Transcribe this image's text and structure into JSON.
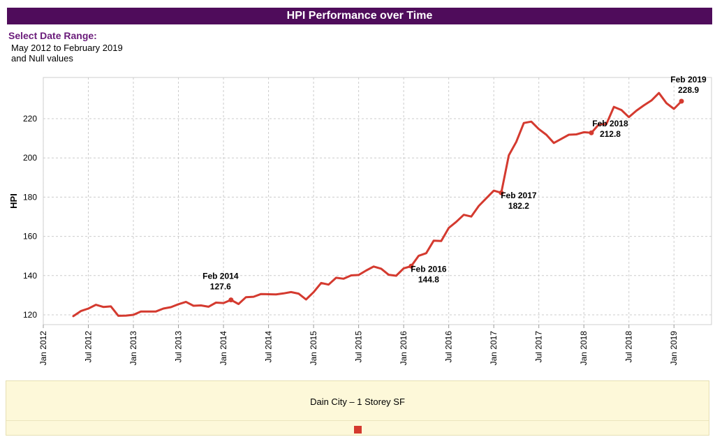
{
  "header": {
    "title": "HPI Performance over Time"
  },
  "filter": {
    "label": "Select Date Range:",
    "line1": "May 2012 to February 2019",
    "line2": "and Null values"
  },
  "colors": {
    "series": "#d43a2f",
    "title_bg": "#4f0c5b",
    "label": "#6a1b7a"
  },
  "legend": {
    "title": "Dain City – 1 Storey SF"
  },
  "chart_data": {
    "type": "line",
    "title": "HPI Performance over Time",
    "xlabel": "",
    "ylabel": "HPI",
    "xlim": [
      "2012-01",
      "2019-06"
    ],
    "ylim": [
      115,
      241
    ],
    "yticks": [
      120,
      140,
      160,
      180,
      200,
      220
    ],
    "xticks": [
      "Jan 2012",
      "Jul 2012",
      "Jan 2013",
      "Jul 2013",
      "Jan 2014",
      "Jul 2014",
      "Jan 2015",
      "Jul 2015",
      "Jan 2016",
      "Jul 2016",
      "Jan 2017",
      "Jul 2017",
      "Jan 2018",
      "Jul 2018",
      "Jan 2019"
    ],
    "grid": true,
    "legend_position": "bottom",
    "series": [
      {
        "name": "Dain City – 1 Storey SF",
        "x": [
          "2012-05",
          "2012-06",
          "2012-07",
          "2012-08",
          "2012-09",
          "2012-10",
          "2012-11",
          "2012-12",
          "2013-01",
          "2013-02",
          "2013-03",
          "2013-04",
          "2013-05",
          "2013-06",
          "2013-07",
          "2013-08",
          "2013-09",
          "2013-10",
          "2013-11",
          "2013-12",
          "2014-01",
          "2014-02",
          "2014-03",
          "2014-04",
          "2014-05",
          "2014-06",
          "2014-07",
          "2014-08",
          "2014-09",
          "2014-10",
          "2014-11",
          "2014-12",
          "2015-01",
          "2015-02",
          "2015-03",
          "2015-04",
          "2015-05",
          "2015-06",
          "2015-07",
          "2015-08",
          "2015-09",
          "2015-10",
          "2015-11",
          "2015-12",
          "2016-01",
          "2016-02",
          "2016-03",
          "2016-04",
          "2016-05",
          "2016-06",
          "2016-07",
          "2016-08",
          "2016-09",
          "2016-10",
          "2016-11",
          "2016-12",
          "2017-01",
          "2017-02",
          "2017-03",
          "2017-04",
          "2017-05",
          "2017-06",
          "2017-07",
          "2017-08",
          "2017-09",
          "2017-10",
          "2017-11",
          "2017-12",
          "2018-01",
          "2018-02",
          "2018-03",
          "2018-04",
          "2018-05",
          "2018-06",
          "2018-07",
          "2018-08",
          "2018-09",
          "2018-10",
          "2018-11",
          "2018-12",
          "2019-01",
          "2019-02"
        ],
        "values": [
          119.3,
          121.9,
          123.2,
          125.1,
          124.0,
          124.3,
          119.5,
          119.6,
          120.0,
          121.7,
          121.7,
          121.7,
          123.2,
          123.9,
          125.4,
          126.6,
          124.6,
          124.8,
          124.1,
          126.2,
          126.0,
          127.6,
          125.5,
          129.0,
          129.2,
          130.6,
          130.5,
          130.4,
          130.9,
          131.6,
          130.8,
          127.8,
          131.5,
          136.2,
          135.4,
          138.9,
          138.4,
          140.1,
          140.3,
          142.6,
          144.6,
          143.5,
          140.4,
          139.9,
          143.7,
          144.8,
          150.1,
          151.4,
          157.8,
          157.6,
          164.3,
          167.4,
          171.0,
          170.1,
          175.5,
          179.4,
          183.3,
          182.2,
          201.3,
          208.2,
          217.8,
          218.5,
          214.7,
          211.8,
          207.6,
          209.7,
          211.8,
          212.0,
          213.1,
          212.8,
          217.1,
          217.3,
          226.0,
          224.4,
          220.8,
          224.1,
          226.8,
          229.3,
          233.1,
          227.9,
          225.0,
          228.9
        ]
      }
    ],
    "annotations": [
      {
        "x": "2014-02",
        "month": "Feb 2014",
        "value": "127.6"
      },
      {
        "x": "2016-02",
        "month": "Feb 2016",
        "value": "144.8"
      },
      {
        "x": "2017-02",
        "month": "Feb 2017",
        "value": "182.2"
      },
      {
        "x": "2018-02",
        "month": "Feb 2018",
        "value": "212.8"
      },
      {
        "x": "2019-02",
        "month": "Feb 2019",
        "value": "228.9"
      }
    ]
  }
}
